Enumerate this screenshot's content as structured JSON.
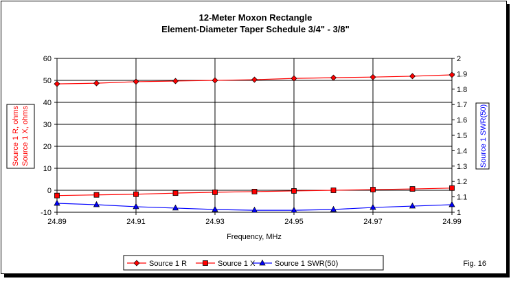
{
  "chart_data": {
    "type": "line",
    "title": "12-Meter Moxon Rectangle",
    "subtitle": "Element-Diameter Taper Schedule 3/4\" - 3/8\"",
    "xlabel": "Frequency, MHz",
    "ylabel_left": [
      "Source 1 R, ohms",
      "Source 1 X, ohms"
    ],
    "ylabel_right": "Source 1 SWR(50)",
    "x": [
      24.89,
      24.9,
      24.91,
      24.92,
      24.93,
      24.94,
      24.95,
      24.96,
      24.97,
      24.98,
      24.99
    ],
    "x_ticks": [
      "24.89",
      "24.91",
      "24.93",
      "24.95",
      "24.97",
      "24.99"
    ],
    "xlim": [
      24.89,
      24.99
    ],
    "ylim_left": [
      -10,
      60
    ],
    "y_ticks_left": [
      "-10",
      "0",
      "10",
      "20",
      "30",
      "40",
      "50",
      "60"
    ],
    "ylim_right": [
      1,
      2
    ],
    "y_ticks_right": [
      "1",
      "1.1",
      "1.2",
      "1.3",
      "1.4",
      "1.5",
      "1.6",
      "1.7",
      "1.8",
      "1.9",
      "2"
    ],
    "grid": true,
    "legend_position": "bottom",
    "series": [
      {
        "name": "Source 1 R",
        "axis": "left",
        "marker": "diamond",
        "color": "#ff0000",
        "values": [
          48.4,
          48.7,
          49.4,
          49.7,
          50.0,
          50.3,
          50.9,
          51.2,
          51.5,
          51.9,
          52.5
        ]
      },
      {
        "name": "Source 1 X",
        "axis": "left",
        "marker": "square",
        "color": "#ff0000",
        "values": [
          -2.4,
          -2.1,
          -1.8,
          -1.3,
          -0.9,
          -0.6,
          -0.3,
          0.0,
          0.3,
          0.6,
          1.0
        ]
      },
      {
        "name": "Source 1 SWR(50)",
        "axis": "right",
        "marker": "triangle",
        "color": "#0000ff",
        "values": [
          1.058,
          1.049,
          1.036,
          1.027,
          1.018,
          1.013,
          1.013,
          1.018,
          1.031,
          1.04,
          1.049
        ]
      }
    ],
    "annotation": "Fig. 16"
  }
}
